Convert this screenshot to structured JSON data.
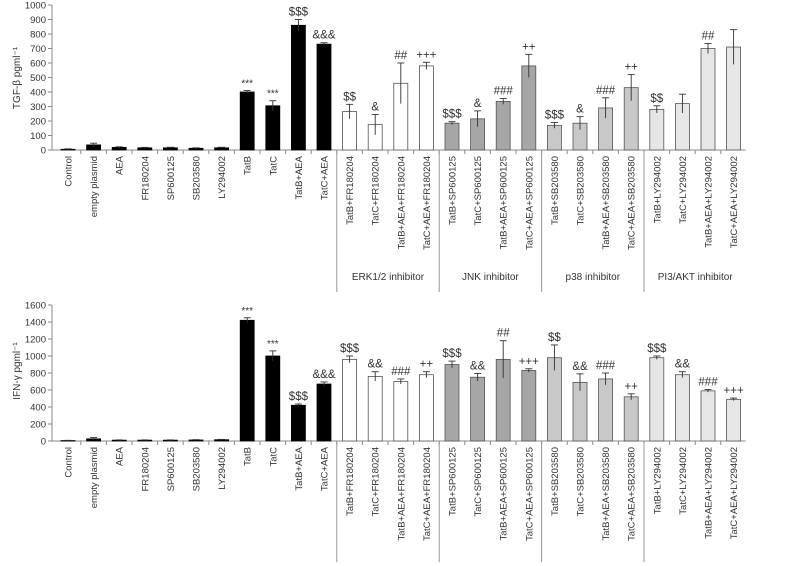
{
  "chart_data": [
    {
      "type": "bar",
      "ylabel": "TGF-β pgml⁻¹",
      "ylim": [
        0,
        1000
      ],
      "yticks": [
        0,
        100,
        200,
        300,
        400,
        500,
        600,
        700,
        800,
        900,
        1000
      ],
      "grid": false,
      "categories": [
        "Control",
        "empty plasmid",
        "AEA",
        "FR180204",
        "SP600125",
        "SB203580",
        "LY294002",
        "TatB",
        "TatC",
        "TatB+AEA",
        "TatC+AEA",
        "TatB+FR180204",
        "TatC+FR180204",
        "TatB+AEA+FR180204",
        "TatC+AEA+FR180204",
        "TatB+SP600125",
        "TatC+SP600125",
        "TatB+AEA+SP600125",
        "TatC+AEA+SP600125",
        "TatB+SB203580",
        "TatC+SB203580",
        "TatB+AEA+SB203580",
        "TatC+AEA+SB203580",
        "TatB+LY294002",
        "TatC+LY294002",
        "TatB+AEA+LY294002",
        "TatC+AEA+LY294002"
      ],
      "values": [
        5,
        35,
        18,
        15,
        15,
        12,
        15,
        400,
        305,
        860,
        730,
        265,
        175,
        460,
        580,
        185,
        215,
        335,
        580,
        170,
        185,
        290,
        430,
        280,
        320,
        700,
        710
      ],
      "errors": [
        3,
        12,
        4,
        3,
        4,
        3,
        4,
        10,
        35,
        40,
        10,
        50,
        70,
        140,
        25,
        10,
        55,
        20,
        80,
        20,
        45,
        70,
        90,
        25,
        65,
        35,
        120
      ],
      "annotations": [
        "",
        "",
        "",
        "",
        "",
        "",
        "",
        "***",
        "***",
        "$$$",
        "&&&",
        "$$",
        "&",
        "##",
        "+++",
        "$$$",
        "&",
        "###",
        "++",
        "$$$",
        "&",
        "###",
        "++",
        "$$",
        "",
        "##",
        ""
      ],
      "bar_colors": [
        "#000000",
        "#000000",
        "#000000",
        "#000000",
        "#000000",
        "#000000",
        "#000000",
        "#000000",
        "#000000",
        "#000000",
        "#000000",
        "#ffffff",
        "#ffffff",
        "#ffffff",
        "#ffffff",
        "#a6a6a6",
        "#a6a6a6",
        "#a6a6a6",
        "#a6a6a6",
        "#c8c8c8",
        "#c8c8c8",
        "#c8c8c8",
        "#c8c8c8",
        "#e6e6e6",
        "#e6e6e6",
        "#e6e6e6",
        "#e6e6e6"
      ],
      "groups": [
        {
          "label": "ERK1/2 inhibitor",
          "start": 11,
          "end": 14
        },
        {
          "label": "JNK inhibitor",
          "start": 15,
          "end": 18
        },
        {
          "label": "p38 inhibitor",
          "start": 19,
          "end": 22
        },
        {
          "label": "PI3/AKT inhibitor",
          "start": 23,
          "end": 26
        }
      ]
    },
    {
      "type": "bar",
      "ylabel": "IFN-γ pgml⁻¹",
      "ylim": [
        0,
        1600
      ],
      "yticks": [
        0,
        200,
        400,
        600,
        800,
        1000,
        1200,
        1400,
        1600
      ],
      "grid": false,
      "categories": [
        "Control",
        "empty plasmid",
        "AEA",
        "FR180204",
        "SP600125",
        "SB203580",
        "LY294002",
        "TatB",
        "TatC",
        "TatB+AEA",
        "TatC+AEA",
        "TatB+FR180204",
        "TatC+FR180204",
        "TatB+AEA+FR180204",
        "TatC+AEA+FR180204",
        "TatB+SP600125",
        "TatC+SP600125",
        "TatB+AEA+SP600125",
        "TatC+AEA+SP600125",
        "TatB+SB203580",
        "TatC+SB203580",
        "TatB+AEA+SB203580",
        "TatC+AEA+SB203580",
        "TatB+LY294002",
        "TatC+LY294002",
        "TatB+AEA+LY294002",
        "TatC+AEA+LY294002"
      ],
      "values": [
        5,
        25,
        10,
        10,
        10,
        12,
        15,
        1420,
        1000,
        420,
        670,
        960,
        760,
        700,
        780,
        900,
        750,
        960,
        830,
        980,
        690,
        730,
        520,
        980,
        780,
        590,
        490
      ],
      "errors": [
        3,
        15,
        3,
        3,
        3,
        4,
        4,
        30,
        60,
        15,
        25,
        40,
        55,
        30,
        35,
        40,
        45,
        220,
        20,
        150,
        100,
        70,
        35,
        20,
        35,
        15,
        15
      ],
      "annotations": [
        "",
        "",
        "",
        "",
        "",
        "",
        "",
        "***",
        "***",
        "$$$",
        "&&&",
        "$$$",
        "&&",
        "###",
        "++",
        "$$$",
        "&&",
        "##",
        "+++",
        "$$",
        "&&",
        "###",
        "++",
        "$$$",
        "&&",
        "###",
        "+++"
      ],
      "bar_colors": [
        "#000000",
        "#000000",
        "#000000",
        "#000000",
        "#000000",
        "#000000",
        "#000000",
        "#000000",
        "#000000",
        "#000000",
        "#000000",
        "#ffffff",
        "#ffffff",
        "#ffffff",
        "#ffffff",
        "#a6a6a6",
        "#a6a6a6",
        "#a6a6a6",
        "#a6a6a6",
        "#c8c8c8",
        "#c8c8c8",
        "#c8c8c8",
        "#c8c8c8",
        "#e6e6e6",
        "#e6e6e6",
        "#e6e6e6",
        "#e6e6e6"
      ]
    }
  ]
}
